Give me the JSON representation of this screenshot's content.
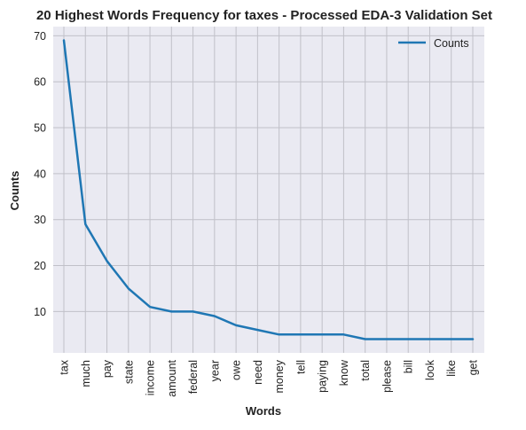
{
  "chart_data": {
    "type": "line",
    "title": "20 Highest Words Frequency for taxes - Processed EDA-3 Validation Set",
    "xlabel": "Words",
    "ylabel": "Counts",
    "categories": [
      "tax",
      "much",
      "pay",
      "state",
      "income",
      "amount",
      "federal",
      "year",
      "owe",
      "need",
      "money",
      "tell",
      "paying",
      "know",
      "total",
      "please",
      "bill",
      "look",
      "like",
      "get"
    ],
    "series": [
      {
        "name": "Counts",
        "values": [
          69,
          29,
          21,
          15,
          11,
          10,
          10,
          9,
          7,
          6,
          5,
          5,
          5,
          5,
          4,
          4,
          4,
          4,
          4,
          4
        ]
      }
    ],
    "ylim": [
      1,
      72
    ],
    "yticks": [
      10,
      20,
      30,
      40,
      50,
      60,
      70
    ],
    "grid": true,
    "legend_position": "top-right",
    "colors": {
      "line": "#1f77b4",
      "background": "#eaeaf2",
      "grid": "#c0c0c8"
    }
  }
}
